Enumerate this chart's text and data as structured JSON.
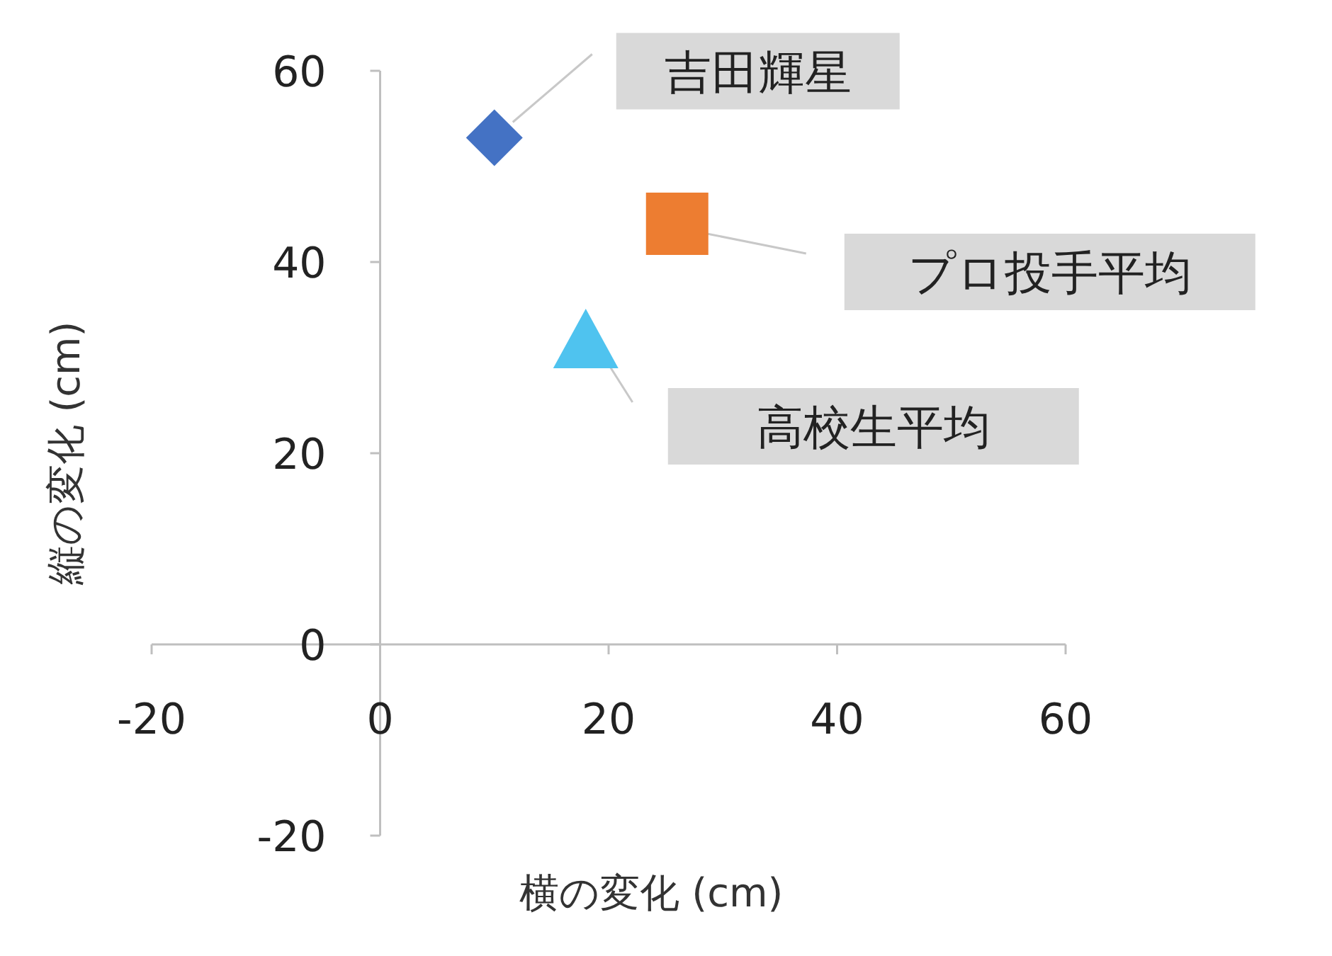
{
  "chart_data": {
    "type": "scatter",
    "xlabel": "横の変化 (cm)",
    "ylabel": "縦の変化 (cm)",
    "xlim": [
      -20,
      60
    ],
    "ylim": [
      -20,
      60
    ],
    "xticks": [
      -20,
      0,
      20,
      40,
      60
    ],
    "yticks": [
      -20,
      0,
      20,
      40,
      60
    ],
    "grid": false,
    "legend": false,
    "series": [
      {
        "name": "吉田輝星",
        "color": "#4472c4",
        "marker": "diamond",
        "x": [
          10
        ],
        "values": [
          53
        ]
      },
      {
        "name": "プロ投手平均",
        "color": "#ed7d31",
        "marker": "square",
        "x": [
          26
        ],
        "values": [
          44
        ]
      },
      {
        "name": "高校生平均",
        "color": "#4fc3ef",
        "marker": "triangle",
        "x": [
          18
        ],
        "values": [
          32
        ]
      }
    ]
  }
}
